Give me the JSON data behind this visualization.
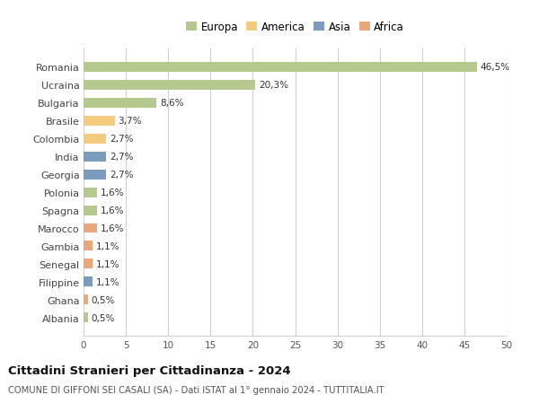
{
  "countries": [
    "Romania",
    "Ucraina",
    "Bulgaria",
    "Brasile",
    "Colombia",
    "India",
    "Georgia",
    "Polonia",
    "Spagna",
    "Marocco",
    "Gambia",
    "Senegal",
    "Filippine",
    "Ghana",
    "Albania"
  ],
  "values": [
    46.5,
    20.3,
    8.6,
    3.7,
    2.7,
    2.7,
    2.7,
    1.6,
    1.6,
    1.6,
    1.1,
    1.1,
    1.1,
    0.5,
    0.5
  ],
  "labels": [
    "46,5%",
    "20,3%",
    "8,6%",
    "3,7%",
    "2,7%",
    "2,7%",
    "2,7%",
    "1,6%",
    "1,6%",
    "1,6%",
    "1,1%",
    "1,1%",
    "1,1%",
    "0,5%",
    "0,5%"
  ],
  "colors": [
    "#b5c98e",
    "#b5c98e",
    "#b5c98e",
    "#f5cc7f",
    "#f5cc7f",
    "#7b9bbf",
    "#7b9bbf",
    "#b5c98e",
    "#b5c98e",
    "#e8a87c",
    "#e8a87c",
    "#e8a87c",
    "#7b9bbf",
    "#e8a87c",
    "#b5c98e"
  ],
  "legend_labels": [
    "Europa",
    "America",
    "Asia",
    "Africa"
  ],
  "legend_colors": [
    "#b5c98e",
    "#f5cc7f",
    "#7b9bbf",
    "#e8a87c"
  ],
  "title": "Cittadini Stranieri per Cittadinanza - 2024",
  "subtitle": "COMUNE DI GIFFONI SEI CASALI (SA) - Dati ISTAT al 1° gennaio 2024 - TUTTITALIA.IT",
  "xlim": [
    0,
    50
  ],
  "xticks": [
    0,
    5,
    10,
    15,
    20,
    25,
    30,
    35,
    40,
    45,
    50
  ],
  "bg_color": "#ffffff",
  "grid_color": "#d0d0d0"
}
